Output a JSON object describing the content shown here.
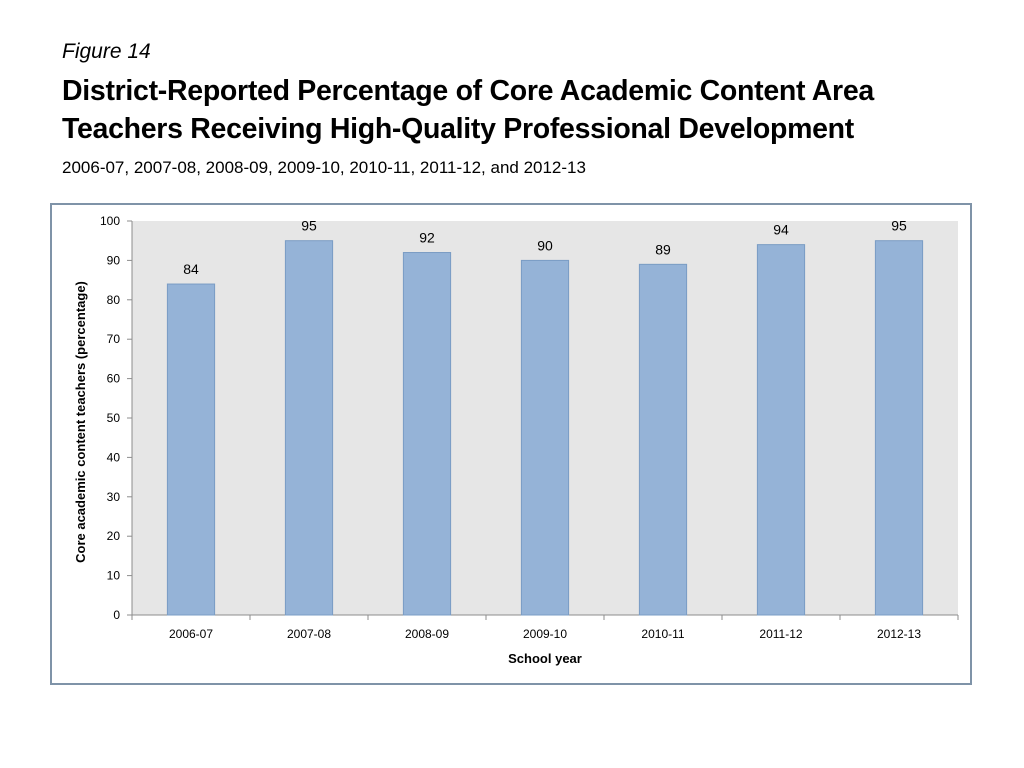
{
  "figure_label": "Figure 14",
  "title_line1": "District-Reported Percentage of Core Academic Content Area",
  "title_line2": "Teachers Receiving High-Quality Professional Development",
  "subtitle": "2006-07, 2007-08, 2008-09, 2009-10, 2010-11, 2011-12, and 2012-13",
  "colors": {
    "bar_fill": "#95b3d7",
    "bar_stroke": "#7a9cc4",
    "plot_background": "#e6e6e6",
    "frame_border": "#7f93a8"
  },
  "chart_data": {
    "type": "bar",
    "categories": [
      "2006-07",
      "2007-08",
      "2008-09",
      "2009-10",
      "2010-11",
      "2011-12",
      "2012-13"
    ],
    "values": [
      84,
      95,
      92,
      90,
      89,
      94,
      95
    ],
    "data_labels": [
      "84",
      "95",
      "92",
      "90",
      "89",
      "94",
      "95"
    ],
    "xlabel": "School year",
    "ylabel": "Core academic content teachers (percentage)",
    "ylim": [
      0,
      100
    ],
    "yticks": [
      "0",
      "10",
      "20",
      "30",
      "40",
      "50",
      "60",
      "70",
      "80",
      "90",
      "100"
    ],
    "grid": false,
    "legend": "none"
  }
}
